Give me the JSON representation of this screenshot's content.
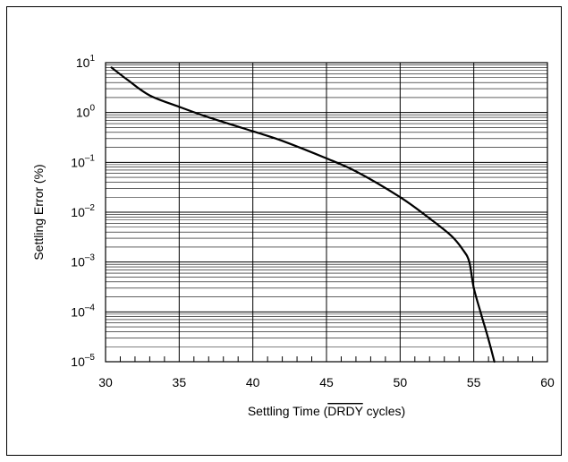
{
  "chart_data": {
    "type": "line",
    "title": "",
    "xlabel_parts": [
      "Settling Time (",
      "DRDY",
      " cycles)"
    ],
    "ylabel": "Settling Error (%)",
    "x_scale": "linear",
    "y_scale": "log",
    "xlim": [
      30,
      60
    ],
    "ylim": [
      1e-05,
      10
    ],
    "x_ticks": [
      "30",
      "35",
      "40",
      "45",
      "50",
      "55",
      "60"
    ],
    "y_ticks": [
      {
        "value": 10,
        "base": "10",
        "exp": "1"
      },
      {
        "value": 1,
        "base": "10",
        "exp": "0"
      },
      {
        "value": 0.1,
        "base": "10",
        "exp": "–1"
      },
      {
        "value": 0.01,
        "base": "10",
        "exp": "–2"
      },
      {
        "value": 0.001,
        "base": "10",
        "exp": "–3"
      },
      {
        "value": 0.0001,
        "base": "10",
        "exp": "–4"
      },
      {
        "value": 1e-05,
        "base": "10",
        "exp": "–5"
      }
    ],
    "grid": true,
    "legend": "none",
    "line_color": "#000000",
    "series": [
      {
        "x": [
          30.4,
          31.5,
          33,
          35,
          37,
          40,
          42,
          45,
          47,
          50,
          52,
          53.5,
          54.3,
          54.7,
          55,
          55.5,
          56,
          56.4
        ],
        "y": [
          8,
          4.5,
          2.2,
          1.3,
          0.8,
          0.42,
          0.27,
          0.12,
          0.066,
          0.02,
          0.0075,
          0.0033,
          0.0017,
          0.001,
          0.0003,
          9e-05,
          2.8e-05,
          1e-05
        ]
      }
    ]
  }
}
